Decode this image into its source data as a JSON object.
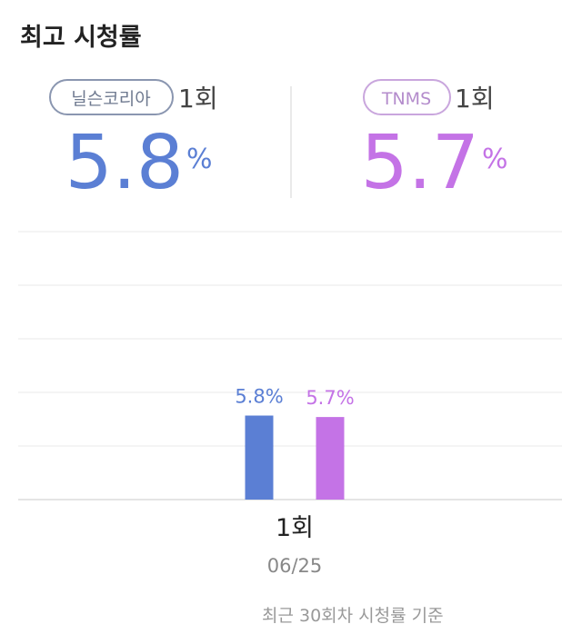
{
  "chart_data": {
    "type": "bar",
    "title": "최고 시청률",
    "unit": "%",
    "categories": [
      "1회"
    ],
    "dates": [
      "06/25"
    ],
    "series": [
      {
        "name": "닐슨코리아",
        "color": "#5b7fd4",
        "values": [
          5.8
        ],
        "value_labels": [
          "5.8%"
        ]
      },
      {
        "name": "TNMS",
        "color": "#c473e6",
        "values": [
          5.7
        ],
        "value_labels": [
          "5.7%"
        ]
      }
    ],
    "ylim": [
      0,
      18.5
    ],
    "grid": true,
    "note": "최근 30회차 시청률 기준"
  }
}
